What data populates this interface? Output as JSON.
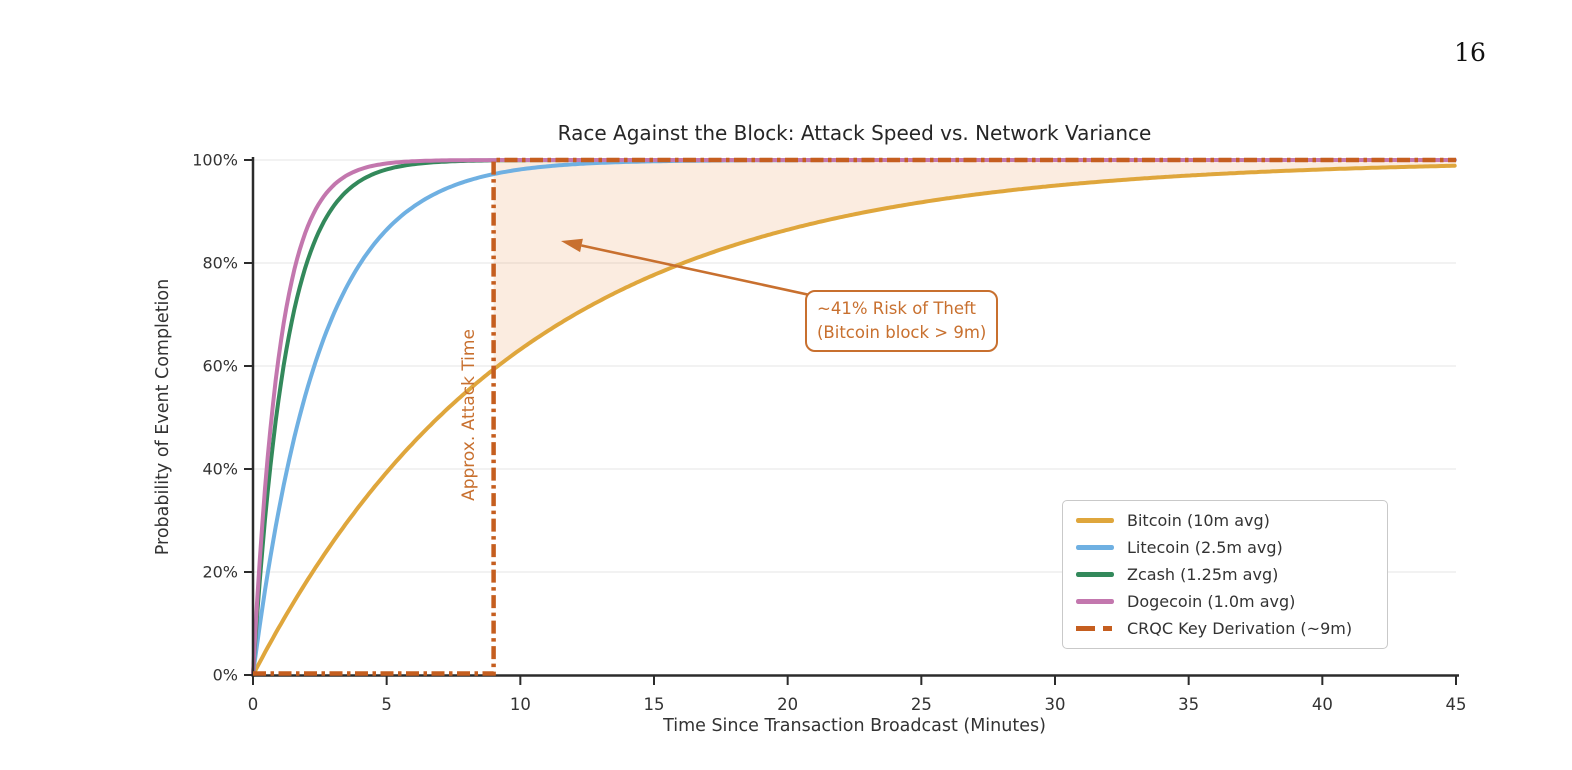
{
  "page": {
    "number": "16",
    "background": "#ffffff"
  },
  "chart_data": {
    "type": "line",
    "title": "Race Against the Block: Attack Speed vs. Network Variance",
    "xlabel": "Time Since Transaction Broadcast (Minutes)",
    "ylabel": "Probability of Event Completion",
    "xlim": [
      0,
      45
    ],
    "ylim_percent": [
      0,
      100
    ],
    "x_ticks": [
      0,
      5,
      10,
      15,
      20,
      25,
      30,
      35,
      40,
      45
    ],
    "y_ticks": [
      "0%",
      "20%",
      "40%",
      "60%",
      "80%",
      "100%"
    ],
    "grid": "horizontal-only",
    "model": "P(t) = 1 - exp(-t / avg_block_minutes)",
    "series": [
      {
        "name": "bitcoin",
        "label": "Bitcoin (10m avg)",
        "avg_block_minutes": 10,
        "color": "#DFA63C",
        "style": "solid"
      },
      {
        "name": "litecoin",
        "label": "Litecoin (2.5m avg)",
        "avg_block_minutes": 2.5,
        "color": "#6FB0E2",
        "style": "solid"
      },
      {
        "name": "zcash",
        "label": "Zcash (1.25m avg)",
        "avg_block_minutes": 1.25,
        "color": "#33895B",
        "style": "solid"
      },
      {
        "name": "dogecoin",
        "label": "Dogecoin (1.0m avg)",
        "avg_block_minutes": 1.0,
        "color": "#C377AE",
        "style": "solid"
      }
    ],
    "threshold": {
      "name": "crqc",
      "label": "CRQC Key Derivation (~9m)",
      "time_minutes": 9,
      "color": "#C55E1F",
      "style": "dash-dot",
      "shape": "step: 0% before 9m, 100% after 9m"
    },
    "shaded_region": {
      "meaning": "Probability mass where the Bitcoin block takes longer than the ~9m CRQC key derivation",
      "between": "Bitcoin CDF and 100%",
      "from_minutes": 9,
      "to_minutes": 45,
      "fill_color": "#E68A3F",
      "fill_opacity": 0.16
    },
    "annotations": {
      "attack_line_label": "Approx. Attack Time",
      "risk_box_line1": "~41% Risk of Theft",
      "risk_box_line2": "(Bitcoin block > 9m)",
      "risk_percent": 41,
      "color": "#C8702F"
    },
    "legend": {
      "position": "lower right",
      "border_color": "#C9C9C9"
    },
    "axis_color": "#2B2B2B",
    "grid_color": "#EBEBEB",
    "tick_label_color": "#333333"
  }
}
